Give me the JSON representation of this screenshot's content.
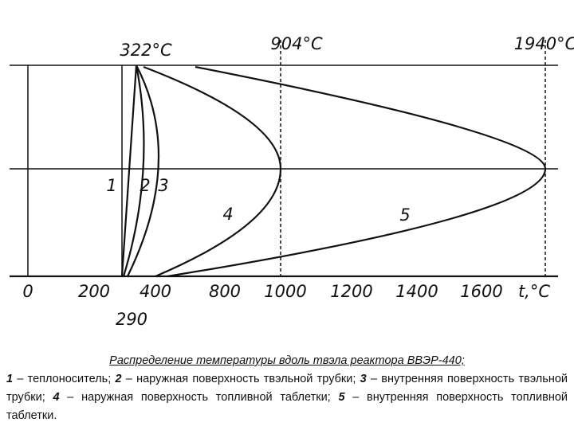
{
  "diagram": {
    "top_labels": [
      "322°C",
      "904°C",
      "1940°C"
    ],
    "axis_labels": [
      "0",
      "200",
      "400",
      "800",
      "1000",
      "1200",
      "1400",
      "1600",
      "t,°C"
    ],
    "below_label": "290",
    "curve_labels": [
      "1",
      "2",
      "3",
      "4",
      "5"
    ]
  },
  "caption": {
    "title": "Распределение температуры вдоль твэла реактора ВВЭР-440;",
    "items": [
      {
        "number": "1",
        "text": " – теплоноситель; "
      },
      {
        "number": "2",
        "text": " – наружная поверхность твэльной трубки; "
      },
      {
        "number": "3",
        "text": " – внутренняя поверхность твэльной трубки; "
      },
      {
        "number": "4",
        "text": " – наружная поверхность топливной таблетки; "
      },
      {
        "number": "5",
        "text": " – внутренняя поверхность топливной таблетки."
      }
    ]
  }
}
